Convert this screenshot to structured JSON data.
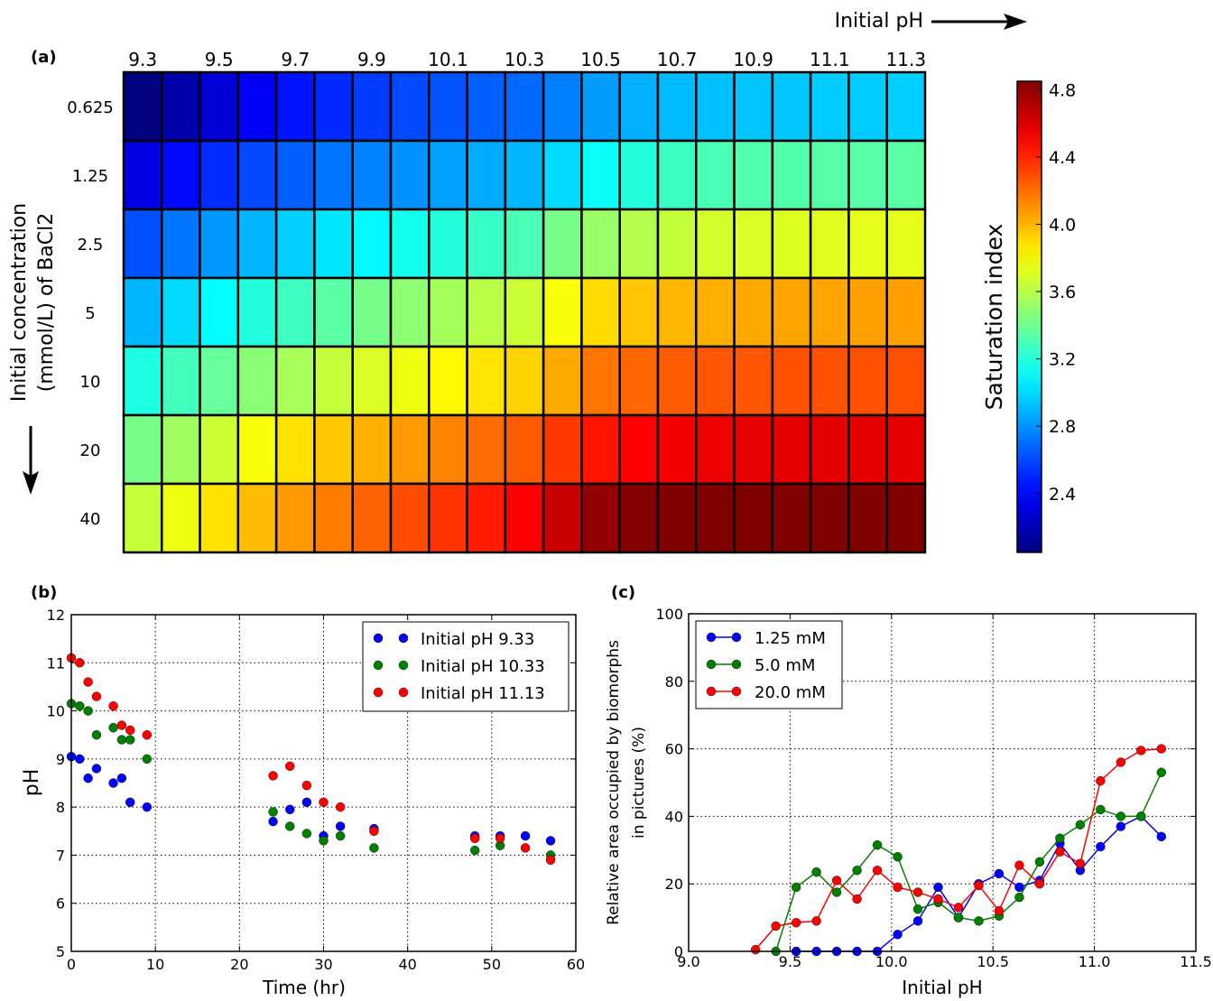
{
  "panel_labels": {
    "a": "(a)",
    "b": "(b)",
    "c": "(c)"
  },
  "chart_data": [
    {
      "type": "heatmap",
      "panel": "(a)",
      "x_title": "Initial pH",
      "y_title_line1": "Initial concentration",
      "y_title_line2": "(mmol/L) of BaCl2",
      "x_tick_labels": [
        "9.3",
        "9.5",
        "9.7",
        "9.9",
        "10.1",
        "10.3",
        "10.5",
        "10.7",
        "10.9",
        "11.1",
        "11.3"
      ],
      "y_categories": [
        "0.625",
        "1.25",
        "2.5",
        "5",
        "10",
        "20",
        "40"
      ],
      "n_columns": 21,
      "colorbar": {
        "label": "Saturation index",
        "min": 2.05,
        "max": 4.85,
        "ticks": [
          "2.4",
          "2.8",
          "3.2",
          "3.6",
          "4.0",
          "4.4",
          "4.8"
        ]
      },
      "values": [
        [
          2.05,
          2.17,
          2.29,
          2.38,
          2.45,
          2.51,
          2.56,
          2.6,
          2.63,
          2.66,
          2.69,
          2.75,
          2.83,
          2.88,
          2.91,
          2.93,
          2.94,
          2.95,
          2.96,
          2.96,
          2.97
        ],
        [
          2.32,
          2.42,
          2.52,
          2.6,
          2.66,
          2.72,
          2.76,
          2.8,
          2.84,
          2.87,
          2.9,
          3.0,
          3.12,
          3.2,
          3.26,
          3.3,
          3.32,
          3.33,
          3.34,
          3.34,
          3.35
        ],
        [
          2.62,
          2.72,
          2.82,
          2.9,
          2.97,
          3.03,
          3.09,
          3.15,
          3.2,
          3.25,
          3.3,
          3.42,
          3.52,
          3.59,
          3.64,
          3.68,
          3.7,
          3.71,
          3.72,
          3.73,
          3.73
        ],
        [
          2.9,
          3.0,
          3.1,
          3.19,
          3.27,
          3.35,
          3.42,
          3.49,
          3.55,
          3.61,
          3.66,
          3.78,
          3.9,
          3.96,
          4.0,
          4.02,
          4.04,
          4.05,
          4.05,
          4.06,
          4.06
        ],
        [
          3.18,
          3.28,
          3.38,
          3.48,
          3.56,
          3.64,
          3.7,
          3.76,
          3.82,
          3.87,
          3.92,
          4.04,
          4.18,
          4.22,
          4.25,
          4.26,
          4.27,
          4.28,
          4.28,
          4.28,
          4.28
        ],
        [
          3.42,
          3.54,
          3.66,
          3.78,
          3.88,
          3.95,
          4.02,
          4.08,
          4.14,
          4.2,
          4.25,
          4.35,
          4.45,
          4.5,
          4.53,
          4.55,
          4.56,
          4.57,
          4.57,
          4.57,
          4.57
        ],
        [
          3.64,
          3.76,
          3.88,
          3.98,
          4.08,
          4.16,
          4.23,
          4.29,
          4.36,
          4.43,
          4.5,
          4.65,
          4.8,
          4.84,
          4.85,
          4.85,
          4.85,
          4.85,
          4.85,
          4.85,
          4.85
        ]
      ]
    },
    {
      "type": "scatter",
      "panel": "(b)",
      "xlabel": "Time (hr)",
      "ylabel": "pH",
      "xlim": [
        0,
        60
      ],
      "ylim": [
        5,
        12
      ],
      "x_ticks": [
        0,
        10,
        20,
        30,
        40,
        50,
        60
      ],
      "y_ticks": [
        5,
        6,
        7,
        8,
        9,
        10,
        11,
        12
      ],
      "grid": true,
      "legend_position": "top-right",
      "series": [
        {
          "name": "Initial pH 9.33",
          "color": "#0000ff",
          "x": [
            0,
            1,
            2,
            3,
            5,
            6,
            7,
            9,
            24,
            26,
            28,
            30,
            32,
            36,
            48,
            51,
            54,
            57
          ],
          "y": [
            9.05,
            9.0,
            8.6,
            8.8,
            8.5,
            8.6,
            8.1,
            8.0,
            7.7,
            7.95,
            8.1,
            7.4,
            7.6,
            7.55,
            7.4,
            7.4,
            7.4,
            7.3
          ]
        },
        {
          "name": "Initial pH 10.33",
          "color": "#008000",
          "x": [
            0,
            1,
            2,
            3,
            5,
            6,
            7,
            9,
            24,
            26,
            28,
            30,
            32,
            36,
            48,
            51,
            57
          ],
          "y": [
            10.15,
            10.1,
            10.0,
            9.5,
            9.65,
            9.4,
            9.4,
            9.0,
            7.9,
            7.6,
            7.45,
            7.3,
            7.4,
            7.15,
            7.1,
            7.2,
            7.0
          ]
        },
        {
          "name": "Initial pH 11.13",
          "color": "#ff0000",
          "x": [
            0,
            1,
            2,
            3,
            5,
            6,
            7,
            9,
            24,
            26,
            28,
            30,
            32,
            36,
            48,
            51,
            54,
            57
          ],
          "y": [
            11.1,
            11.0,
            10.6,
            10.3,
            10.1,
            9.7,
            9.6,
            9.5,
            8.65,
            8.85,
            8.45,
            8.1,
            8.0,
            7.5,
            7.35,
            7.35,
            7.15,
            6.9
          ]
        }
      ]
    },
    {
      "type": "line",
      "panel": "(c)",
      "xlabel": "Initial pH",
      "ylabel_line1": "Relative area occupied by biomorphs",
      "ylabel_line2": "in pictures (%)",
      "xlim": [
        9.0,
        11.5
      ],
      "ylim": [
        0,
        100
      ],
      "x_ticks": [
        "9.0",
        "9.5",
        "10.0",
        "10.5",
        "11.0",
        "11.5"
      ],
      "y_ticks": [
        0,
        20,
        40,
        60,
        80,
        100
      ],
      "grid": true,
      "legend_position": "top-left",
      "x": [
        9.33,
        9.43,
        9.53,
        9.63,
        9.73,
        9.83,
        9.93,
        10.03,
        10.13,
        10.23,
        10.33,
        10.43,
        10.53,
        10.63,
        10.73,
        10.83,
        10.93,
        11.03,
        11.13,
        11.23,
        11.33
      ],
      "series": [
        {
          "name": "1.25 mM",
          "color": "#0000ff",
          "x": [
            9.53,
            9.63,
            9.73,
            9.83,
            9.93,
            10.03,
            10.13,
            10.23,
            10.33,
            10.43,
            10.53,
            10.63,
            10.73,
            10.83,
            10.93,
            11.03,
            11.13,
            11.23,
            11.33
          ],
          "y": [
            0,
            0,
            0,
            0,
            0,
            5,
            9,
            19,
            10,
            20,
            23,
            19,
            21,
            32,
            24,
            31,
            37,
            40,
            34
          ]
        },
        {
          "name": "5.0 mM",
          "color": "#008000",
          "x": [
            9.43,
            9.53,
            9.63,
            9.73,
            9.83,
            9.93,
            10.03,
            10.13,
            10.23,
            10.33,
            10.43,
            10.53,
            10.63,
            10.73,
            10.83,
            10.93,
            11.03,
            11.13,
            11.23,
            11.33
          ],
          "y": [
            0,
            19,
            23.5,
            17.5,
            24,
            31.5,
            28,
            12.5,
            14.5,
            10,
            9,
            10.5,
            16,
            26.5,
            33.5,
            37.5,
            42,
            40,
            40,
            53
          ]
        },
        {
          "name": "20.0 mM",
          "color": "#ff0000",
          "x": [
            9.33,
            9.43,
            9.53,
            9.63,
            9.73,
            9.83,
            9.93,
            10.03,
            10.13,
            10.23,
            10.33,
            10.43,
            10.53,
            10.63,
            10.73,
            10.83,
            10.93,
            11.03,
            11.13,
            11.23,
            11.33
          ],
          "y": [
            0.5,
            7.5,
            8.5,
            9,
            21,
            15.5,
            24,
            19,
            17.5,
            15.5,
            13,
            19.5,
            12,
            25.5,
            20,
            29.5,
            26,
            50.5,
            56,
            59.5,
            60
          ]
        }
      ]
    }
  ]
}
